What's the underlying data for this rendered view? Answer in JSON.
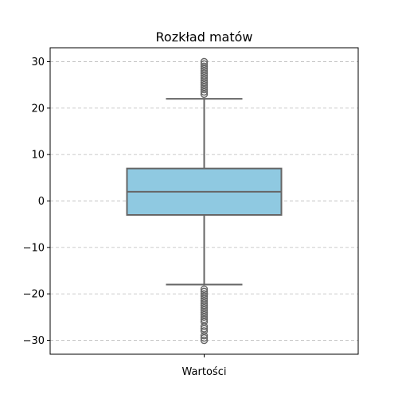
{
  "chart_data": {
    "type": "boxplot",
    "title": "Rozkład matów",
    "xlabel": "",
    "ylabel": "",
    "categories": [
      "Wartości"
    ],
    "ylim": [
      -33,
      33
    ],
    "yticks": [
      30,
      20,
      10,
      0,
      -10,
      -20,
      -30
    ],
    "ytick_labels": [
      "30",
      "20",
      "10",
      "0",
      "−10",
      "−20",
      "−30"
    ],
    "grid": "y-dashed",
    "box": {
      "q1": -3,
      "median": 2,
      "q3": 7,
      "whisker_low": -18,
      "whisker_high": 22
    },
    "outliers_high": [
      23,
      23.5,
      24,
      24.5,
      25,
      25.5,
      26,
      26.5,
      27,
      27.5,
      28,
      28.5,
      29,
      29.5,
      30
    ],
    "outliers_low": [
      -19,
      -19.5,
      -20,
      -20.5,
      -21,
      -21.5,
      -22,
      -22.5,
      -23,
      -23.5,
      -24,
      -24.5,
      -25,
      -25.5,
      -26,
      -27,
      -27.5,
      -28,
      -29,
      -29.5,
      -30
    ],
    "colors": {
      "box_fill": "#8fc9e1",
      "line": "#666666",
      "grid": "#c4c4c4"
    }
  }
}
